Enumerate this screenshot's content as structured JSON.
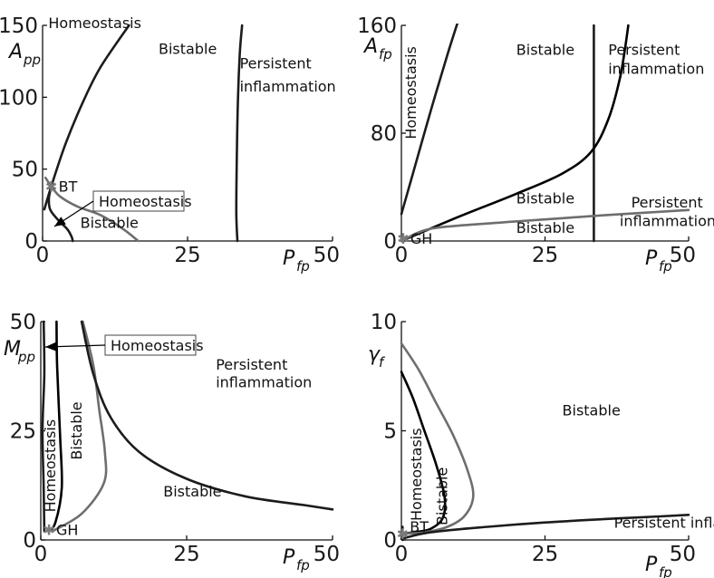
{
  "colors": {
    "dark": "#1c1c1c",
    "black": "#000000",
    "gray": "#6e6e6e",
    "marker": "#7a7a7a"
  },
  "chart_data": [
    {
      "type": "line",
      "panel": "top-left",
      "xlabel": "P",
      "xlabel_sub": "fp",
      "ylabel": "A",
      "ylabel_sub": "pp",
      "xlim": [
        0,
        50
      ],
      "ylim": [
        0,
        150
      ],
      "xticks": [
        "0",
        "25",
        "50"
      ],
      "yticks": [
        "0",
        "50",
        "100",
        "150"
      ],
      "series": [
        {
          "color": "#1c1c1c",
          "x": [
            0.3,
            1.5,
            4,
            7,
            10,
            14.9
          ],
          "y": [
            22,
            38,
            68,
            97,
            121,
            150
          ]
        },
        {
          "color": "#1c1c1c",
          "x": [
            33.6,
            33.4,
            33.5,
            33.7,
            34.0,
            34.4
          ],
          "y": [
            0,
            20,
            60,
            100,
            130,
            150
          ]
        },
        {
          "color": "#1c1c1c",
          "x": [
            1.5,
            1.1,
            1.3,
            2.6,
            4.3,
            5.0,
            5.2
          ],
          "y": [
            38,
            30,
            22,
            15,
            8,
            3,
            0
          ]
        },
        {
          "color": "#6e6e6e",
          "x": [
            0.5,
            1.5,
            3,
            6,
            10,
            14,
            16.5
          ],
          "y": [
            44,
            38,
            31,
            24,
            18,
            8,
            0
          ]
        }
      ],
      "markers": [
        {
          "label": "BT",
          "x": 1.5,
          "y": 38
        }
      ],
      "annotations": [
        {
          "text": "Homeostasis",
          "x": 1,
          "y": 148
        },
        {
          "text": "Bistable",
          "x": 20,
          "y": 130
        },
        {
          "text": "Persistent",
          "x": 34,
          "y": 120
        },
        {
          "text": "inflammation",
          "x": 34,
          "y": 104
        },
        {
          "text": "Bistable",
          "x": 6.5,
          "y": 9
        }
      ],
      "callout": {
        "text": "Homeostasis",
        "boxed": true
      }
    },
    {
      "type": "line",
      "panel": "top-right",
      "xlabel": "P",
      "xlabel_sub": "fp",
      "ylabel": "A",
      "ylabel_sub": "fp",
      "xlim": [
        0,
        50
      ],
      "ylim": [
        0,
        160
      ],
      "xticks": [
        "0",
        "25",
        "50"
      ],
      "yticks": [
        "0",
        "80",
        "160"
      ],
      "series": [
        {
          "color": "#1c1c1c",
          "x": [
            0,
            2,
            5,
            8,
            10
          ],
          "y": [
            20,
            50,
            95,
            138,
            165
          ]
        },
        {
          "color": "#1c1c1c",
          "x": [
            33.5,
            33.5
          ],
          "y": [
            0,
            160
          ]
        },
        {
          "color": "#000000",
          "x": [
            0,
            10,
            20,
            28,
            33,
            36,
            38,
            39,
            39.5
          ],
          "y": [
            0,
            18,
            35,
            50,
            66,
            90,
            120,
            145,
            160
          ]
        },
        {
          "color": "#6e6e6e",
          "x": [
            0,
            5,
            15,
            25,
            35,
            50
          ],
          "y": [
            0,
            9,
            13,
            16,
            19,
            23
          ]
        }
      ],
      "markers": [
        {
          "label": "GH",
          "x": 0.3,
          "y": 2
        }
      ],
      "annotations": [
        {
          "text": "Homeostasis",
          "x": 2.5,
          "y": 110,
          "rotate": true
        },
        {
          "text": "Bistable",
          "x": 20,
          "y": 138
        },
        {
          "text": "Persistent",
          "x": 36,
          "y": 138
        },
        {
          "text": "inflammation",
          "x": 36,
          "y": 124
        },
        {
          "text": "Bistable",
          "x": 20,
          "y": 28
        },
        {
          "text": "Persistent",
          "x": 40,
          "y": 25
        },
        {
          "text": "inflammation",
          "x": 38,
          "y": 11
        },
        {
          "text": "Bistable",
          "x": 20,
          "y": 6
        }
      ]
    },
    {
      "type": "line",
      "panel": "bottom-left",
      "xlabel": "P",
      "xlabel_sub": "fp",
      "ylabel": "M",
      "ylabel_sub": "pp",
      "xlim": [
        0,
        50
      ],
      "ylim": [
        0,
        50
      ],
      "xticks": [
        "0",
        "25",
        "50"
      ],
      "yticks": [
        "0",
        "25",
        "50"
      ],
      "series": [
        {
          "color": "#1c1c1c",
          "x": [
            0.6,
            0.5,
            0.3,
            0.6,
            0.5
          ],
          "y": [
            2,
            12,
            25,
            38,
            50
          ]
        },
        {
          "color": "#000000",
          "x": [
            1.3,
            2.5,
            3.6,
            3.3,
            2.8,
            2.7
          ],
          "y": [
            2,
            4,
            12,
            24,
            40,
            50
          ]
        },
        {
          "color": "#6e6e6e",
          "x": [
            2,
            7,
            10.8,
            11,
            10,
            9,
            7.2
          ],
          "y": [
            2,
            6,
            13,
            20,
            30,
            40,
            50
          ]
        },
        {
          "color": "#1c1c1c",
          "x": [
            7,
            9,
            12,
            17,
            25,
            35,
            45,
            50
          ],
          "y": [
            50,
            38,
            28,
            20,
            14,
            10,
            8,
            7
          ]
        }
      ],
      "markers": [
        {
          "label": "GH",
          "x": 1.4,
          "y": 2.4
        }
      ],
      "annotations": [
        {
          "text": "Homeostasis",
          "x": 2.5,
          "y": 17,
          "rotate": true
        },
        {
          "text": "Bistable",
          "x": 7,
          "y": 25,
          "rotate": true
        },
        {
          "text": "Persistent",
          "x": 30,
          "y": 39
        },
        {
          "text": "inflammation",
          "x": 30,
          "y": 35
        },
        {
          "text": "Bistable",
          "x": 21,
          "y": 10
        }
      ],
      "callout": {
        "text": "Homeostasis",
        "boxed": true
      }
    },
    {
      "type": "line",
      "panel": "bottom-right",
      "xlabel": "P",
      "xlabel_sub": "fp",
      "ylabel": "γ",
      "ylabel_sub": "f",
      "xlim": [
        0,
        50
      ],
      "ylim": [
        0,
        10
      ],
      "xticks": [
        "0",
        "25",
        "50"
      ],
      "yticks": [
        "0",
        "5",
        "10"
      ],
      "series": [
        {
          "color": "#000000",
          "x": [
            0,
            2,
            4,
            6,
            7.5,
            7.2,
            5,
            2,
            0.5
          ],
          "y": [
            7.7,
            6.5,
            5,
            3.5,
            2,
            1,
            0.5,
            0.35,
            0.3
          ]
        },
        {
          "color": "#6e6e6e",
          "x": [
            0,
            3,
            6,
            9,
            11.5,
            12.5,
            11,
            8,
            4,
            1,
            0
          ],
          "y": [
            9.0,
            7.8,
            6.3,
            4.8,
            3.2,
            2.0,
            1.1,
            0.6,
            0.35,
            0.3,
            0.3
          ]
        },
        {
          "color": "#1c1c1c",
          "x": [
            0,
            5,
            15,
            25,
            35,
            45,
            50
          ],
          "y": [
            0.05,
            0.35,
            0.6,
            0.8,
            0.95,
            1.08,
            1.15
          ]
        },
        {
          "color": "#1c1c1c",
          "x": [
            0.2,
            0.2
          ],
          "y": [
            0,
            0.6
          ]
        }
      ],
      "markers": [
        {
          "label": "BT",
          "x": 0.2,
          "y": 0.3
        }
      ],
      "annotations": [
        {
          "text": "Bistable",
          "x": 28,
          "y": 5.7
        },
        {
          "text": "Homeostasis",
          "x": 3.5,
          "y": 3,
          "rotate": true
        },
        {
          "text": "Bistable",
          "x": 8,
          "y": 2,
          "rotate": true
        },
        {
          "text": "Persistent inflammation",
          "x": 37,
          "y": 0.55
        }
      ]
    }
  ]
}
